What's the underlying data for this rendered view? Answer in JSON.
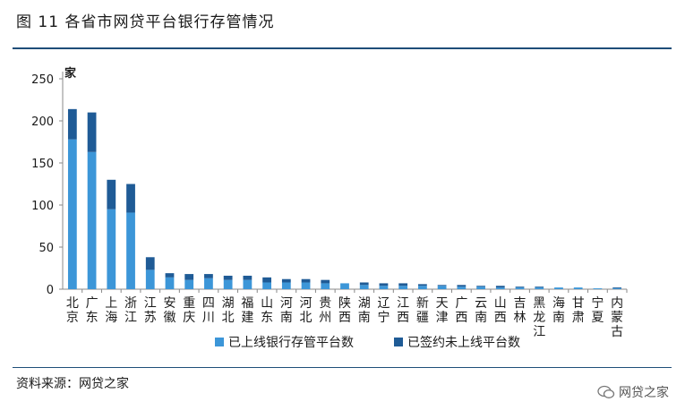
{
  "header": {
    "title": "图 11 各省市网贷平台银行存管情况"
  },
  "footer": {
    "source": "资料来源：网贷之家",
    "watermark": "网贷之家"
  },
  "colors": {
    "online": "#3c96d8",
    "signed": "#1f5b96",
    "rule": "#1f4e79"
  },
  "chart_data": {
    "type": "bar",
    "stacked": true,
    "unit": "家",
    "ylim": [
      0,
      250
    ],
    "yticks": [
      0,
      50,
      100,
      150,
      200,
      250
    ],
    "legend_position": "bottom",
    "categories": [
      "北京",
      "广东",
      "上海",
      "浙江",
      "江苏",
      "安徽",
      "重庆",
      "四川",
      "湖北",
      "福建",
      "山东",
      "河南",
      "河北",
      "贵州",
      "陕西",
      "湖南",
      "辽宁",
      "江西",
      "新疆",
      "天津",
      "广西",
      "云南",
      "山西",
      "吉林",
      "黑龙江",
      "海南",
      "甘肃",
      "宁夏",
      "内蒙古"
    ],
    "series": [
      {
        "name": "已上线银行存管平台数",
        "values": [
          178,
          163,
          95,
          91,
          23,
          14,
          11,
          13,
          11,
          11,
          8,
          8,
          8,
          7,
          7,
          5,
          4,
          4,
          4,
          4,
          3,
          3,
          2,
          2,
          2,
          2,
          2,
          1,
          1
        ]
      },
      {
        "name": "已签约未上线平台数",
        "values": [
          36,
          47,
          35,
          34,
          15,
          5,
          7,
          5,
          5,
          5,
          6,
          4,
          4,
          4,
          0,
          3,
          3,
          3,
          2,
          1,
          2,
          1,
          2,
          1,
          1,
          0,
          0,
          0,
          1
        ]
      }
    ]
  }
}
